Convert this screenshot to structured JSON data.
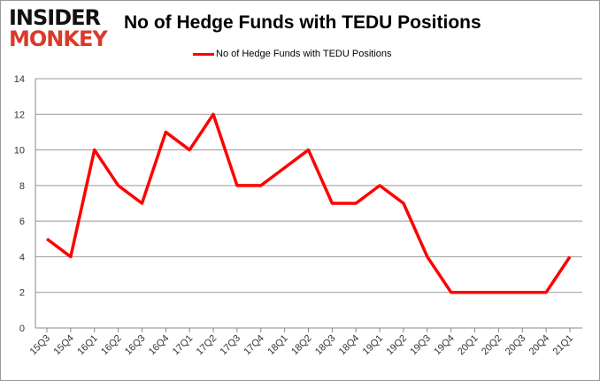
{
  "logo": {
    "line1": "INSIDER",
    "line2": "MONKEY"
  },
  "chart_data": {
    "type": "line",
    "title": "No of Hedge Funds with TEDU Positions",
    "legend_position": "top",
    "grid": true,
    "ylim": [
      0,
      14
    ],
    "yticks": [
      0,
      2,
      4,
      6,
      8,
      10,
      12,
      14
    ],
    "categories": [
      "15Q3",
      "15Q4",
      "16Q1",
      "16Q2",
      "16Q3",
      "16Q4",
      "17Q1",
      "17Q2",
      "17Q3",
      "17Q4",
      "18Q1",
      "18Q2",
      "18Q3",
      "18Q4",
      "19Q1",
      "19Q2",
      "19Q3",
      "19Q4",
      "20Q1",
      "20Q2",
      "20Q3",
      "20Q4",
      "21Q1"
    ],
    "series": [
      {
        "name": "No of Hedge Funds with TEDU Positions",
        "color": "#ff0000",
        "values": [
          5,
          4,
          10,
          8,
          7,
          11,
          10,
          12,
          8,
          8,
          9,
          10,
          7,
          7,
          8,
          7,
          4,
          2,
          2,
          2,
          2,
          2,
          4
        ]
      }
    ]
  }
}
